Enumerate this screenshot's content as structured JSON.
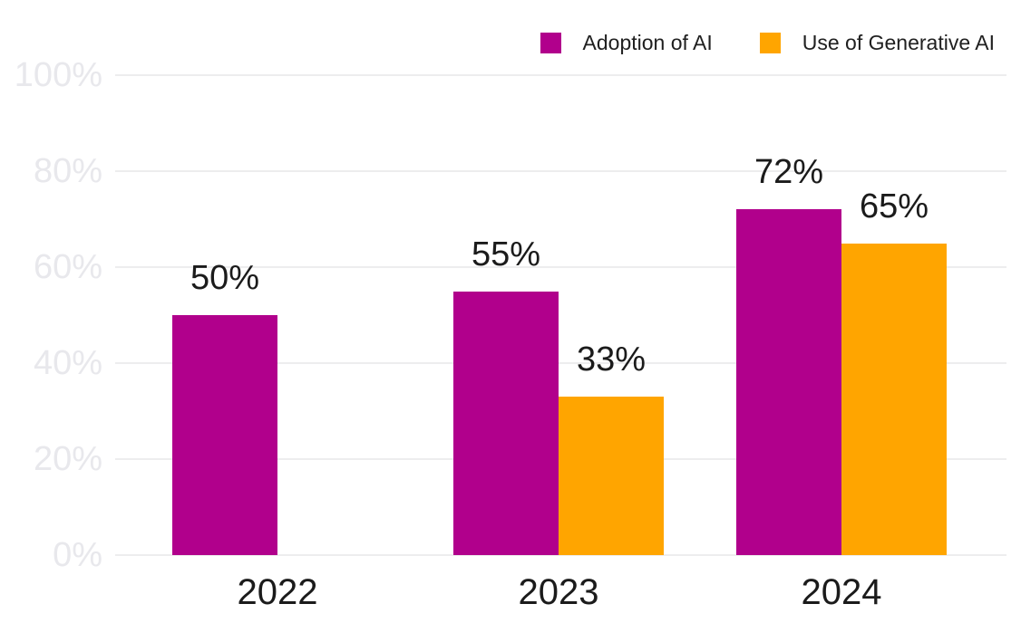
{
  "chart_data": {
    "type": "bar",
    "title": "",
    "xlabel": "",
    "ylabel": "",
    "categories": [
      "2022",
      "2023",
      "2024"
    ],
    "series": [
      {
        "name": "Adoption of AI",
        "color": "#B1008C",
        "values": [
          50,
          55,
          72
        ],
        "value_labels": [
          "50%",
          "55%",
          "72%"
        ]
      },
      {
        "name": "Use of Generative AI",
        "color": "#FFA500",
        "values": [
          null,
          33,
          65
        ],
        "value_labels": [
          null,
          "33%",
          "65%"
        ]
      }
    ],
    "ylim": [
      0,
      100
    ],
    "y_tick_labels": [
      "0%",
      "20%",
      "40%",
      "60%",
      "80%",
      "100%"
    ],
    "y_tick_values": [
      0,
      20,
      40,
      60,
      80,
      100
    ],
    "grid": true,
    "legend_position": "top-right",
    "colors": {
      "background": "#ffffff",
      "gridline": "#ededee",
      "y_tick_text": "#e8e8ec",
      "label_text": "#1b1b1b",
      "legend_text": "#202020"
    }
  }
}
